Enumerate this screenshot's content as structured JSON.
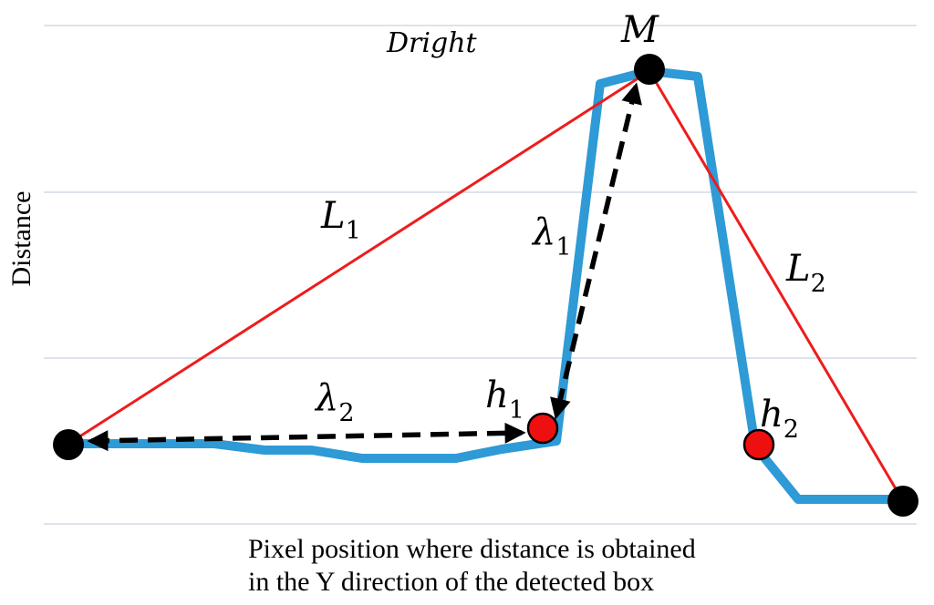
{
  "diagram": {
    "title": "Dright",
    "y_axis_label": "Distance",
    "x_axis_caption": [
      "Pixel position where distance is obtained",
      "in the Y direction of the detected box"
    ],
    "labels": {
      "M": "M",
      "L1": {
        "main": "L",
        "sub": "1"
      },
      "L2": {
        "main": "L",
        "sub": "2"
      },
      "lambda1": {
        "main": "λ",
        "sub": "1"
      },
      "lambda2": {
        "main": "λ",
        "sub": "2"
      },
      "h1": {
        "main": "h",
        "sub": "1"
      },
      "h2": {
        "main": "h",
        "sub": "2"
      }
    },
    "colors": {
      "profile": "#2e9ad6",
      "triangle": "#ee1c1c",
      "gridline": "#dde3ea",
      "endpoint": "#000000",
      "inflection": "#ee1010",
      "arrow": "#000000"
    }
  }
}
